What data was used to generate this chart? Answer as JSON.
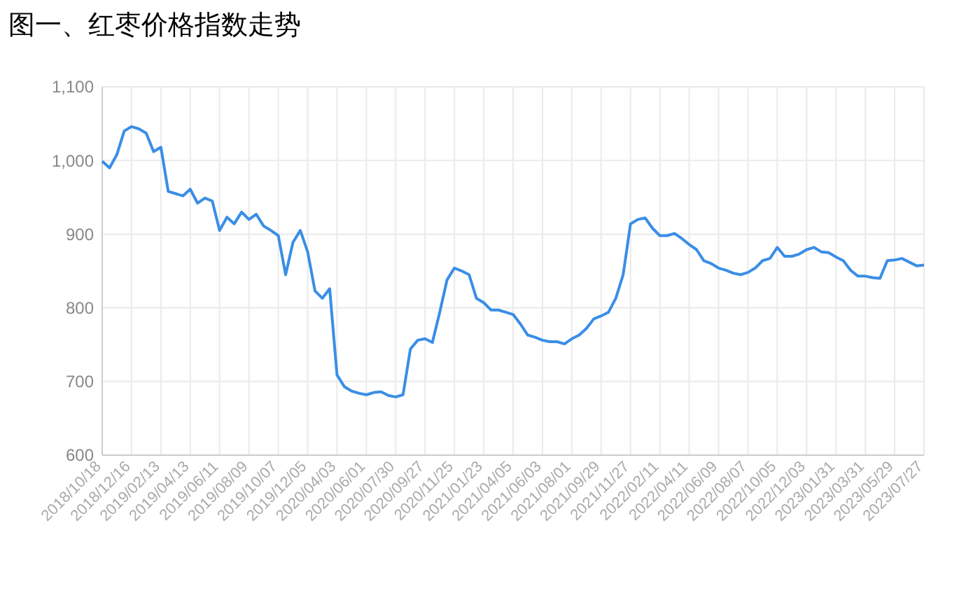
{
  "chart_data": {
    "type": "line",
    "title": "图一、红枣价格指数走势",
    "categories": [
      "2018/10/18",
      null,
      null,
      null,
      "2018/12/16",
      null,
      null,
      null,
      "2019/02/13",
      null,
      null,
      null,
      "2019/04/13",
      null,
      null,
      null,
      "2019/06/11",
      null,
      null,
      null,
      "2019/08/09",
      null,
      null,
      null,
      "2019/10/07",
      null,
      null,
      null,
      "2019/12/05",
      null,
      null,
      null,
      "2020/04/03",
      null,
      null,
      null,
      "2020/06/01",
      null,
      null,
      null,
      "2020/07/30",
      null,
      null,
      null,
      "2020/09/27",
      null,
      null,
      null,
      "2020/11/25",
      null,
      null,
      null,
      "2021/01/23",
      null,
      null,
      null,
      "2021/04/05",
      null,
      null,
      null,
      "2021/06/03",
      null,
      null,
      null,
      "2021/08/01",
      null,
      null,
      null,
      "2021/09/29",
      null,
      null,
      null,
      "2021/11/27",
      null,
      null,
      null,
      "2022/02/11",
      null,
      null,
      null,
      "2022/04/11",
      null,
      null,
      null,
      "2022/06/09",
      null,
      null,
      null,
      "2022/08/07",
      null,
      null,
      null,
      "2022/10/05",
      null,
      null,
      null,
      "2022/12/03",
      null,
      null,
      null,
      "2023/01/31",
      null,
      null,
      null,
      "2023/03/31",
      null,
      null,
      null,
      "2023/05/29",
      null,
      null,
      null,
      "2023/07/27"
    ],
    "series": [
      {
        "color": "#3a8ee6",
        "values": [
          999,
          990,
          1008,
          1040,
          1046,
          1043,
          1037,
          1012,
          1018,
          958,
          955,
          952,
          961,
          942,
          949,
          945,
          905,
          923,
          914,
          930,
          920,
          927,
          911,
          905,
          898,
          845,
          889,
          905,
          876,
          823,
          813,
          826,
          709,
          693,
          687,
          684,
          682,
          685,
          686,
          681,
          679,
          682,
          744,
          756,
          758,
          753,
          794,
          838,
          854,
          850,
          845,
          813,
          807,
          797,
          797,
          794,
          791,
          778,
          763,
          760,
          756,
          754,
          754,
          751,
          758,
          763,
          772,
          785,
          789,
          794,
          813,
          845,
          914,
          920,
          922,
          908,
          898,
          898,
          901,
          894,
          886,
          879,
          864,
          860,
          854,
          851,
          847,
          845,
          848,
          854,
          864,
          867,
          882,
          870,
          870,
          873,
          879,
          882,
          876,
          875,
          869,
          864,
          851,
          843,
          843,
          841,
          840,
          864,
          865,
          867,
          862,
          857,
          858
        ]
      }
    ],
    "ylim": [
      600,
      1100
    ],
    "yticks": [
      600,
      700,
      800,
      900,
      {
        "value": 1000,
        "label": "1,000"
      },
      {
        "value": 1100,
        "label": "1,100"
      }
    ],
    "grid": true
  }
}
